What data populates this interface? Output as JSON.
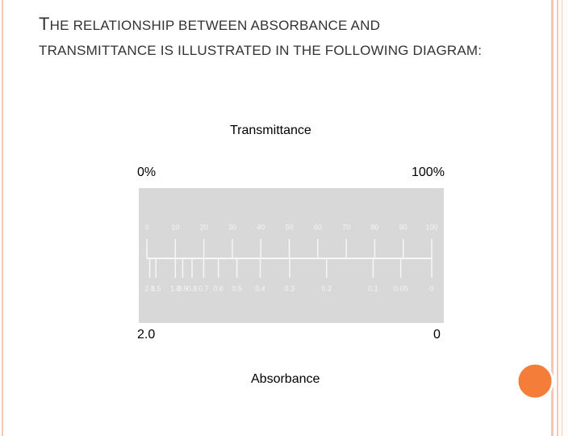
{
  "header": {
    "title": "THE RELATIONSHIP BETWEEN ABSORBANCE AND TRANSMITTANCE IS ILLUSTRATED IN THE FOLLOWING DIAGRAM:"
  },
  "diagram": {
    "top_caption": "Transmittance",
    "left_top": "0%",
    "right_top": "100%",
    "left_bottom": "2.0",
    "right_bottom": "0",
    "bottom_caption": "Absorbance",
    "transmittance_ticks": [
      0,
      10,
      20,
      30,
      40,
      50,
      60,
      70,
      80,
      90,
      100
    ],
    "absorbance_ticks": [
      {
        "value": 2,
        "label": "2.0"
      },
      1.5,
      {
        "value": 1,
        "label": "1.0"
      },
      0.9,
      0.8,
      0.7,
      0.6,
      0.5,
      0.4,
      0.3,
      0.2,
      0.1,
      0.05,
      0
    ]
  }
}
